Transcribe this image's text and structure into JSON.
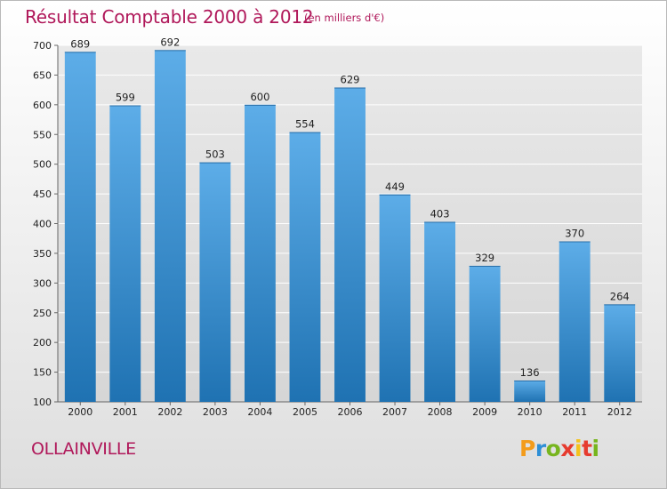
{
  "header": {
    "title": "Résultat Comptable 2000 à 2012",
    "subtitle": "(en milliers d'€)"
  },
  "commune": "OLLAINVILLE",
  "logo": {
    "letters": [
      "P",
      "r",
      "o",
      "x",
      "i",
      "t",
      "i"
    ],
    "colors": [
      "#f39c1c",
      "#2e8fd6",
      "#77b51e",
      "#e63b2e",
      "#f4c21b",
      "#e63b2e",
      "#77b51e"
    ]
  },
  "chart_data": {
    "type": "bar",
    "title": "Résultat Comptable 2000 à 2012",
    "subtitle": "(en milliers d'€)",
    "xlabel": "",
    "ylabel": "",
    "categories": [
      "2000",
      "2001",
      "2002",
      "2003",
      "2004",
      "2005",
      "2006",
      "2007",
      "2008",
      "2009",
      "2010",
      "2011",
      "2012"
    ],
    "values": [
      689,
      599,
      692,
      503,
      600,
      554,
      629,
      449,
      403,
      329,
      136,
      370,
      264
    ],
    "ylim": [
      100,
      700
    ],
    "yticks": [
      100,
      150,
      200,
      250,
      300,
      350,
      400,
      450,
      500,
      550,
      600,
      650,
      700
    ],
    "grid": true,
    "bar_color_top": "#5dade8",
    "bar_color_bottom": "#1f72b2"
  }
}
